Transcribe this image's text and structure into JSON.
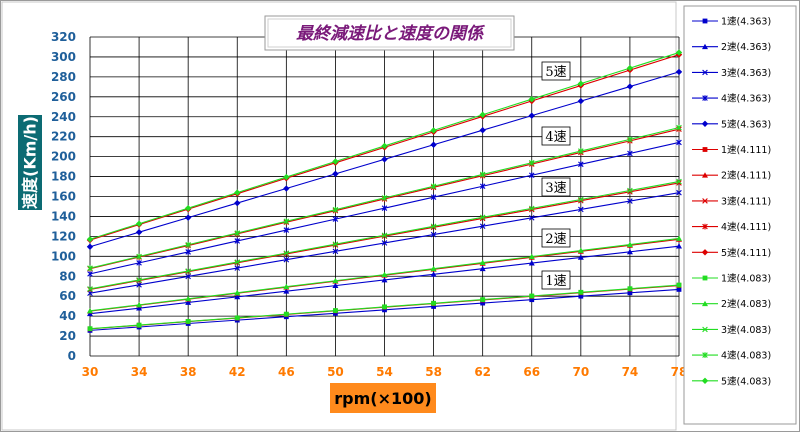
{
  "chart_data": {
    "type": "line",
    "title": "最終減速比と速度の関係",
    "xlabel": "rpm(×100)",
    "ylabel": "速度(Km/h)",
    "x": [
      30,
      34,
      38,
      42,
      46,
      50,
      54,
      58,
      62,
      66,
      70,
      74,
      78
    ],
    "ylim": [
      0,
      320
    ],
    "yticks": [
      0,
      20,
      40,
      60,
      80,
      100,
      120,
      140,
      160,
      180,
      200,
      220,
      240,
      260,
      280,
      300,
      320
    ],
    "grid": true,
    "legend_position": "right",
    "gear_labels": [
      "1速",
      "2速",
      "3速",
      "4速",
      "5速"
    ],
    "series": [
      {
        "name": "1速(4.363)",
        "color": "#0000cc",
        "marker": "square",
        "values": [
          25.7,
          29.1,
          32.6,
          36.0,
          39.4,
          42.8,
          46.3,
          49.7,
          53.1,
          56.5,
          60.0,
          63.4,
          66.8
        ]
      },
      {
        "name": "2速(4.363)",
        "color": "#0000cc",
        "marker": "triangle",
        "values": [
          42.4,
          48.0,
          53.7,
          59.3,
          65.0,
          70.6,
          76.3,
          81.9,
          87.6,
          93.2,
          98.9,
          104.5,
          110.2
        ]
      },
      {
        "name": "3速(4.363)",
        "color": "#0000cc",
        "marker": "x",
        "values": [
          63.0,
          71.4,
          79.8,
          88.2,
          96.6,
          105.0,
          113.4,
          121.8,
          130.2,
          138.6,
          147.0,
          155.4,
          163.8
        ]
      },
      {
        "name": "4速(4.363)",
        "color": "#0000cc",
        "marker": "star",
        "values": [
          82.4,
          93.4,
          104.4,
          115.4,
          126.3,
          137.3,
          148.3,
          159.3,
          170.3,
          181.3,
          192.3,
          203.2,
          214.2
        ]
      },
      {
        "name": "5速(4.363)",
        "color": "#0000cc",
        "marker": "diamond",
        "values": [
          109.6,
          124.2,
          138.8,
          153.4,
          168.0,
          182.7,
          197.3,
          211.9,
          226.5,
          241.1,
          255.7,
          270.3,
          285.0
        ]
      },
      {
        "name": "1速(4.111)",
        "color": "#dd0000",
        "marker": "square",
        "values": [
          27.2,
          30.8,
          34.5,
          38.1,
          41.7,
          45.3,
          49.0,
          52.6,
          56.2,
          59.8,
          63.5,
          67.1,
          70.7
        ]
      },
      {
        "name": "2速(4.111)",
        "color": "#dd0000",
        "marker": "triangle",
        "values": [
          45.0,
          51.0,
          57.0,
          63.0,
          69.0,
          75.0,
          81.0,
          87.0,
          93.0,
          99.0,
          105.0,
          111.0,
          117.0
        ]
      },
      {
        "name": "3速(4.111)",
        "color": "#dd0000",
        "marker": "x",
        "values": [
          66.8,
          75.7,
          84.6,
          93.5,
          102.4,
          111.3,
          120.2,
          129.1,
          138.0,
          146.9,
          155.8,
          164.7,
          173.6
        ]
      },
      {
        "name": "4速(4.111)",
        "color": "#dd0000",
        "marker": "star",
        "values": [
          87.5,
          99.2,
          110.8,
          122.5,
          134.2,
          145.8,
          157.5,
          169.2,
          180.8,
          192.5,
          204.2,
          215.8,
          227.5
        ]
      },
      {
        "name": "5速(4.111)",
        "color": "#dd0000",
        "marker": "diamond",
        "values": [
          116.3,
          131.8,
          147.3,
          162.8,
          178.3,
          193.8,
          209.3,
          224.8,
          240.3,
          255.8,
          271.3,
          286.8,
          302.3
        ]
      },
      {
        "name": "1速(4.083)",
        "color": "#22dd22",
        "marker": "square",
        "values": [
          27.4,
          31.0,
          34.7,
          38.3,
          42.0,
          45.6,
          49.3,
          52.9,
          56.6,
          60.2,
          63.9,
          67.5,
          71.2
        ]
      },
      {
        "name": "2速(4.083)",
        "color": "#22dd22",
        "marker": "triangle",
        "values": [
          45.3,
          51.3,
          57.4,
          63.4,
          69.5,
          75.5,
          81.6,
          87.6,
          93.7,
          99.7,
          105.8,
          111.8,
          117.9
        ]
      },
      {
        "name": "3速(4.083)",
        "color": "#22dd22",
        "marker": "x",
        "values": [
          67.3,
          76.3,
          85.2,
          94.2,
          103.2,
          112.2,
          121.1,
          130.1,
          139.1,
          148.1,
          157.0,
          166.0,
          175.0
        ]
      },
      {
        "name": "4速(4.083)",
        "color": "#22dd22",
        "marker": "star",
        "values": [
          88.1,
          99.8,
          111.6,
          123.3,
          135.1,
          146.8,
          158.6,
          170.3,
          182.1,
          193.8,
          205.6,
          217.3,
          229.1
        ]
      },
      {
        "name": "5速(4.083)",
        "color": "#22dd22",
        "marker": "diamond",
        "values": [
          117.1,
          132.7,
          148.3,
          163.9,
          179.5,
          195.1,
          210.7,
          226.3,
          242.0,
          257.6,
          273.2,
          288.8,
          304.4
        ]
      }
    ]
  }
}
